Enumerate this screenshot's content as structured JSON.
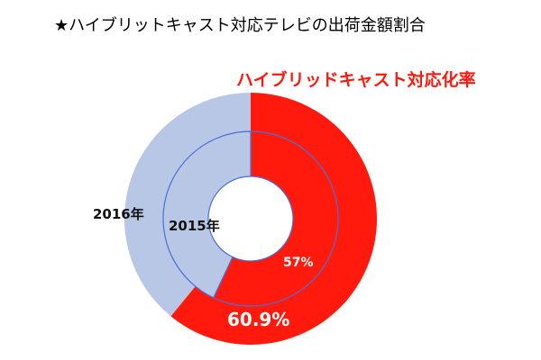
{
  "title": "★ハイブリットキャスト対応テレビの出荷金額割合",
  "chart_data": {
    "type": "pie",
    "subtitle": "ハイブリッドキャスト対応化率",
    "series": [
      {
        "name": "2016年",
        "value_label": "60.9%",
        "values": [
          60.9,
          39.1
        ]
      },
      {
        "name": "2015年",
        "value_label": "57%",
        "values": [
          57,
          43
        ]
      }
    ],
    "colors": {
      "primary": "#ff1a0d",
      "secondary": "#b8c7e5",
      "ring_line": "#4a6fd8"
    },
    "legend": "none"
  }
}
